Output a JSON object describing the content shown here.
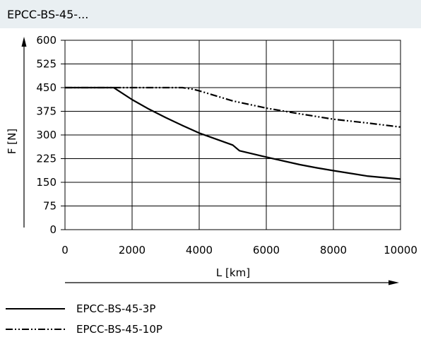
{
  "header": {
    "title": "EPCC-BS-45-..."
  },
  "chart_data": {
    "type": "line",
    "title": "EPCC-BS-45-...",
    "xlabel": "L [km]",
    "ylabel": "F [N]",
    "xlim": [
      0,
      10000
    ],
    "ylim": [
      0,
      600
    ],
    "x_ticks": [
      0,
      2000,
      4000,
      6000,
      8000,
      10000
    ],
    "y_ticks": [
      0,
      75,
      150,
      225,
      300,
      375,
      450,
      525,
      600
    ],
    "grid": true,
    "legend_position": "bottom-left",
    "series": [
      {
        "name": "EPCC-BS-45-3P",
        "style": "solid",
        "color": "#000000",
        "points": [
          [
            0,
            450
          ],
          [
            1450,
            450
          ],
          [
            2000,
            412
          ],
          [
            2500,
            382
          ],
          [
            3000,
            355
          ],
          [
            3500,
            330
          ],
          [
            4000,
            306
          ],
          [
            4500,
            287
          ],
          [
            5000,
            268
          ],
          [
            5200,
            250
          ],
          [
            6000,
            230
          ],
          [
            7000,
            206
          ],
          [
            7500,
            196
          ],
          [
            8000,
            187
          ],
          [
            9000,
            170
          ],
          [
            10000,
            160
          ]
        ]
      },
      {
        "name": "EPCC-BS-45-10P",
        "style": "dash-dot-dot",
        "color": "#000000",
        "points": [
          [
            0,
            450
          ],
          [
            3300,
            450
          ],
          [
            3500,
            450
          ],
          [
            3800,
            445
          ],
          [
            4000,
            440
          ],
          [
            5000,
            408
          ],
          [
            6000,
            385
          ],
          [
            7000,
            367
          ],
          [
            8000,
            350
          ],
          [
            9000,
            338
          ],
          [
            10000,
            325
          ]
        ]
      }
    ]
  }
}
